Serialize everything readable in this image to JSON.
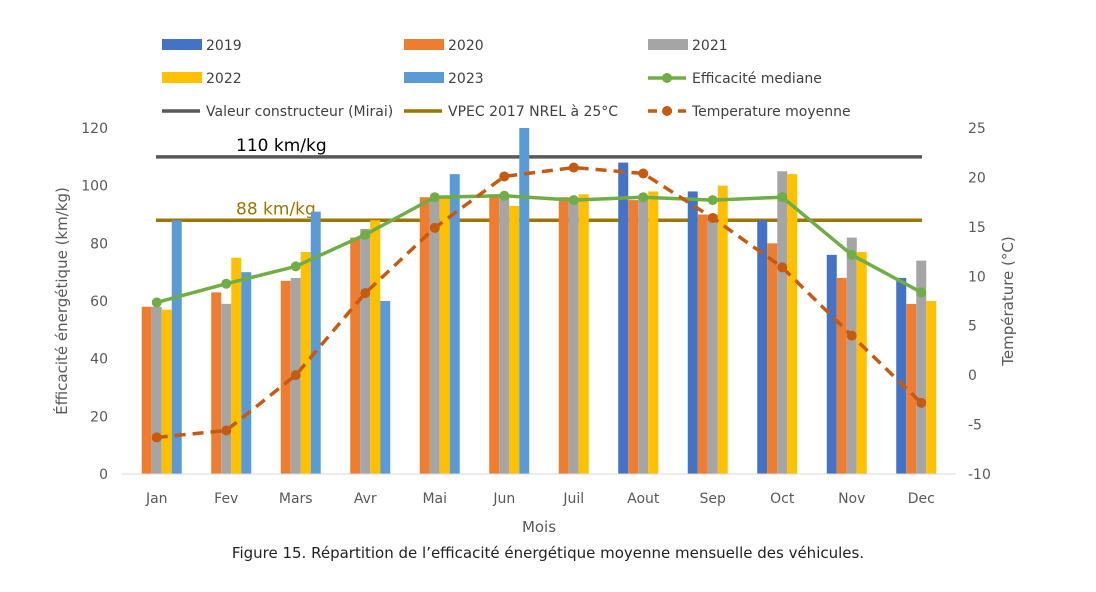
{
  "chart_data": {
    "type": "bar",
    "categories": [
      "Jan",
      "Fev",
      "Mars",
      "Avr",
      "Mai",
      "Jun",
      "Juil",
      "Aout",
      "Sep",
      "Oct",
      "Nov",
      "Dec"
    ],
    "series": [
      {
        "name": "2019",
        "type": "bar",
        "color": "#4472C4",
        "values": [
          null,
          null,
          null,
          null,
          null,
          null,
          null,
          108,
          98,
          88,
          76,
          68
        ]
      },
      {
        "name": "2020",
        "type": "bar",
        "color": "#ED7D31",
        "values": [
          58,
          63,
          67,
          82,
          96,
          97,
          96,
          95,
          90,
          80,
          68,
          59
        ]
      },
      {
        "name": "2021",
        "type": "bar",
        "color": "#A5A5A5",
        "values": [
          58,
          59,
          68,
          85,
          96,
          97,
          96,
          96,
          90,
          105,
          82,
          74
        ]
      },
      {
        "name": "2022",
        "type": "bar",
        "color": "#FFC000",
        "values": [
          57,
          75,
          77,
          88,
          96,
          93,
          97,
          98,
          100,
          104,
          77,
          60
        ]
      },
      {
        "name": "2023",
        "type": "bar",
        "color": "#5B9BD5",
        "values": [
          88,
          70,
          91,
          60,
          104,
          120,
          null,
          null,
          null,
          null,
          null,
          null
        ]
      },
      {
        "name": "Efficacité mediane",
        "type": "line",
        "color": "#70AD47",
        "values": [
          59.5,
          66,
          72,
          83,
          96,
          96.5,
          95,
          96,
          95,
          96,
          76,
          63
        ]
      },
      {
        "name": "Temperature moyenne",
        "type": "line",
        "axis": "right",
        "dashed": true,
        "color": "#C55A11",
        "values": [
          -6.3,
          -5.6,
          0,
          8.3,
          14.9,
          20.1,
          21,
          20.4,
          15.9,
          10.9,
          4,
          -2.8
        ]
      }
    ],
    "reference_lines": [
      {
        "name": "Valeur constructeur (Mirai)",
        "value": 110,
        "label": "110 km/kg",
        "color": "#595959"
      },
      {
        "name": "VPEC 2017  NREL à 25°C",
        "value": 88,
        "label": "88 km/kg",
        "color": "#9C7600"
      }
    ],
    "xlabel": "Mois",
    "ylabel": "Éfficacité énergétique (km/kg)",
    "y2label": "Température (°C)",
    "ylim": [
      0,
      120
    ],
    "y2lim": [
      -10,
      25
    ],
    "yticks": [
      "0",
      "20",
      "40",
      "60",
      "80",
      "100",
      "120"
    ],
    "y2ticks": [
      "-10",
      "-5",
      "0",
      "5",
      "10",
      "15",
      "20",
      "25"
    ],
    "legend_position": "top",
    "grid": false
  },
  "caption": "Figure 15. Répartition de l’efficacité énergétique moyenne mensuelle des véhicules."
}
